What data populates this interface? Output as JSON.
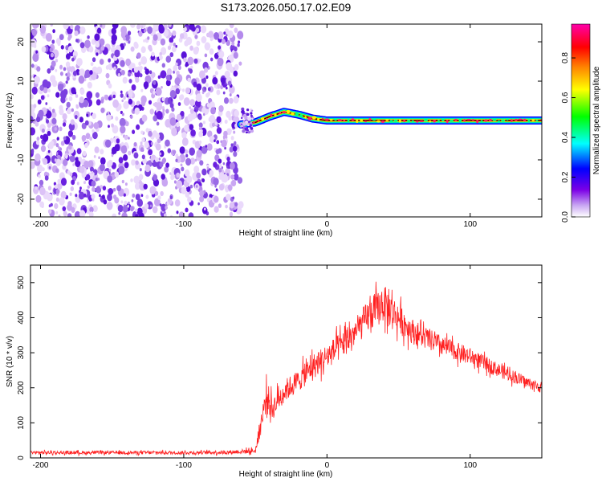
{
  "figure_title": "S173.2026.050.17.02.E09",
  "chart_data": [
    {
      "type": "heatmap",
      "title": "",
      "xlabel": "Height of straight line (km)",
      "ylabel": "Frequency (Hz)",
      "xlim": [
        -207,
        150
      ],
      "ylim": [
        -24.5,
        24.5
      ],
      "xticks": [
        -200,
        -100,
        0,
        100
      ],
      "xtick_labels": [
        "-200",
        "-100",
        "0",
        "100"
      ],
      "yticks": [
        -20,
        -10,
        0,
        10,
        20
      ],
      "ytick_labels": [
        "-20",
        "-10",
        "0",
        "10",
        "20"
      ],
      "noise_region_x": [
        -207,
        -60
      ],
      "signal_region_x": [
        -60,
        150
      ],
      "signal_frequency_track": {
        "x": [
          -60,
          -50,
          -40,
          -30,
          -20,
          -10,
          0,
          20,
          40,
          60,
          80,
          100,
          120,
          150
        ],
        "freq": [
          -1,
          -0.5,
          1,
          2.2,
          1.5,
          0.5,
          0,
          0,
          0,
          0,
          0,
          0,
          0,
          0
        ]
      },
      "colorbar": {
        "label": "Normalized spectral amplitude",
        "range": [
          0,
          0.97
        ],
        "ticks": [
          0.0,
          0.2,
          0.4,
          0.6,
          0.8
        ],
        "tick_labels": [
          "0.0",
          "0.2",
          "0.4",
          "0.6",
          "0.8"
        ],
        "colormap": [
          "#ffffff",
          "#7b00e6",
          "#0000ff",
          "#00ffff",
          "#00ff00",
          "#ffff00",
          "#ff8000",
          "#ff0000",
          "#ff00aa"
        ]
      }
    },
    {
      "type": "line",
      "title": "",
      "xlabel": "Height of straight line (km)",
      "ylabel": "SNR (10 * v/v)",
      "xlim": [
        -207,
        150
      ],
      "ylim": [
        0,
        550
      ],
      "xticks": [
        -200,
        -100,
        0,
        100
      ],
      "xtick_labels": [
        "-200",
        "-100",
        "0",
        "100"
      ],
      "yticks": [
        0,
        100,
        200,
        300,
        400,
        500
      ],
      "ytick_labels": [
        "0",
        "100",
        "200",
        "300",
        "400",
        "500"
      ],
      "series": [
        {
          "name": "SNR",
          "color": "#ff2020",
          "x": [
            -207,
            -150,
            -100,
            -70,
            -50,
            -46,
            -42,
            -38,
            -35,
            -30,
            -20,
            -10,
            0,
            10,
            20,
            30,
            40,
            50,
            60,
            80,
            100,
            120,
            140,
            150
          ],
          "y": [
            15,
            15,
            15,
            16,
            20,
            100,
            180,
            140,
            160,
            190,
            220,
            260,
            290,
            320,
            360,
            410,
            440,
            400,
            360,
            320,
            290,
            250,
            215,
            200
          ],
          "spread": [
            6,
            6,
            6,
            7,
            9,
            40,
            50,
            40,
            40,
            40,
            40,
            45,
            45,
            50,
            50,
            60,
            65,
            55,
            45,
            35,
            30,
            25,
            20,
            20
          ]
        }
      ]
    }
  ]
}
